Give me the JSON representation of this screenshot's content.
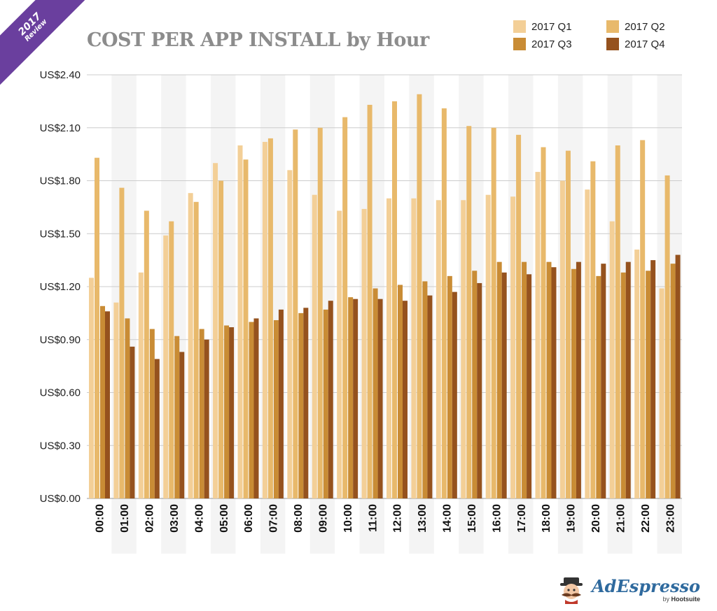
{
  "badge": {
    "year": "2017",
    "text": "Review"
  },
  "brand": {
    "name": "AdEspresso",
    "by": "by",
    "parent": "Hootsuite"
  },
  "icons": {
    "mascot": "mustache-man-icon"
  },
  "colors": {
    "q1": "#f3cf97",
    "q2": "#e8b96b",
    "q3": "#c98c35",
    "q4": "#95521e",
    "band": "#f4f4f4",
    "grid": "#cccccc",
    "title": "#8c8c8c",
    "ribbon": "#6a3f9e"
  },
  "chart_data": {
    "type": "bar",
    "title": "COST PER APP INSTALL by Hour",
    "xlabel": "",
    "ylabel": "",
    "ylim": [
      0,
      2.4
    ],
    "yticks": [
      {
        "value": 0,
        "label": "US$0.00"
      },
      {
        "value": 0.3,
        "label": "US$0.30"
      },
      {
        "value": 0.6,
        "label": "US$0.60"
      },
      {
        "value": 0.9,
        "label": "US$0.90"
      },
      {
        "value": 1.2,
        "label": "US$1.20"
      },
      {
        "value": 1.5,
        "label": "US$1.50"
      },
      {
        "value": 1.8,
        "label": "US$1.80"
      },
      {
        "value": 2.1,
        "label": "US$2.10"
      },
      {
        "value": 2.4,
        "label": "US$2.40"
      }
    ],
    "grid": true,
    "legend": "top-right",
    "categories": [
      "00:00",
      "01:00",
      "02:00",
      "03:00",
      "04:00",
      "05:00",
      "06:00",
      "07:00",
      "08:00",
      "09:00",
      "10:00",
      "11:00",
      "12:00",
      "13:00",
      "14:00",
      "15:00",
      "16:00",
      "17:00",
      "18:00",
      "19:00",
      "20:00",
      "21:00",
      "22:00",
      "23:00"
    ],
    "series": [
      {
        "name": "2017 Q1",
        "values": [
          1.25,
          1.11,
          1.28,
          1.49,
          1.73,
          1.9,
          2.0,
          2.02,
          1.86,
          1.72,
          1.63,
          1.64,
          1.7,
          1.7,
          1.69,
          1.69,
          1.72,
          1.71,
          1.85,
          1.8,
          1.75,
          1.57,
          1.41,
          1.19
        ]
      },
      {
        "name": "2017 Q2",
        "values": [
          1.93,
          1.76,
          1.63,
          1.57,
          1.68,
          1.8,
          1.92,
          2.04,
          2.09,
          2.1,
          2.16,
          2.23,
          2.25,
          2.29,
          2.21,
          2.11,
          2.1,
          2.06,
          1.99,
          1.97,
          1.91,
          2.0,
          2.03,
          1.83
        ]
      },
      {
        "name": "2017 Q3",
        "values": [
          1.09,
          1.02,
          0.96,
          0.92,
          0.96,
          0.98,
          1.0,
          1.01,
          1.05,
          1.07,
          1.14,
          1.19,
          1.21,
          1.23,
          1.26,
          1.29,
          1.34,
          1.34,
          1.34,
          1.3,
          1.26,
          1.28,
          1.29,
          1.33
        ]
      },
      {
        "name": "2017 Q4",
        "values": [
          1.06,
          0.86,
          0.79,
          0.83,
          0.9,
          0.97,
          1.02,
          1.07,
          1.08,
          1.12,
          1.13,
          1.13,
          1.12,
          1.15,
          1.17,
          1.22,
          1.28,
          1.27,
          1.31,
          1.34,
          1.33,
          1.34,
          1.35,
          1.38
        ]
      }
    ]
  }
}
